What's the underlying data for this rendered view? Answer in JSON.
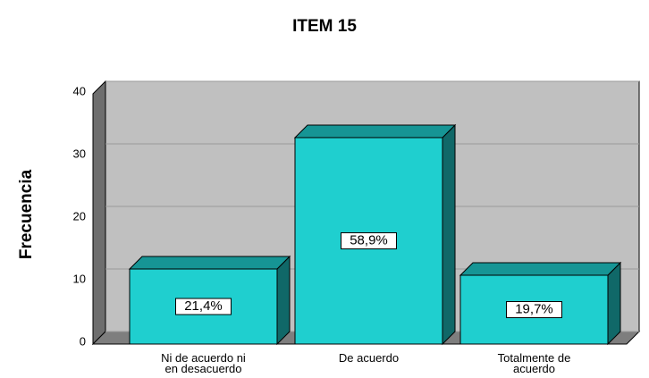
{
  "chart_data": {
    "type": "bar3d",
    "title": "ITEM 15",
    "y_label": "Frecuencia",
    "categories": [
      "Ni de acuerdo ni\nen desacuerdo",
      "De acuerdo",
      "Totalmente de\nacuerdo"
    ],
    "values": [
      12,
      33,
      11
    ],
    "percent_labels": [
      "21,4%",
      "58,9%",
      "19,7%"
    ],
    "color": "#1fcfcf",
    "ylim": [
      0,
      40
    ],
    "yticks": [
      0,
      10,
      20,
      30,
      40
    ],
    "grid": true
  }
}
